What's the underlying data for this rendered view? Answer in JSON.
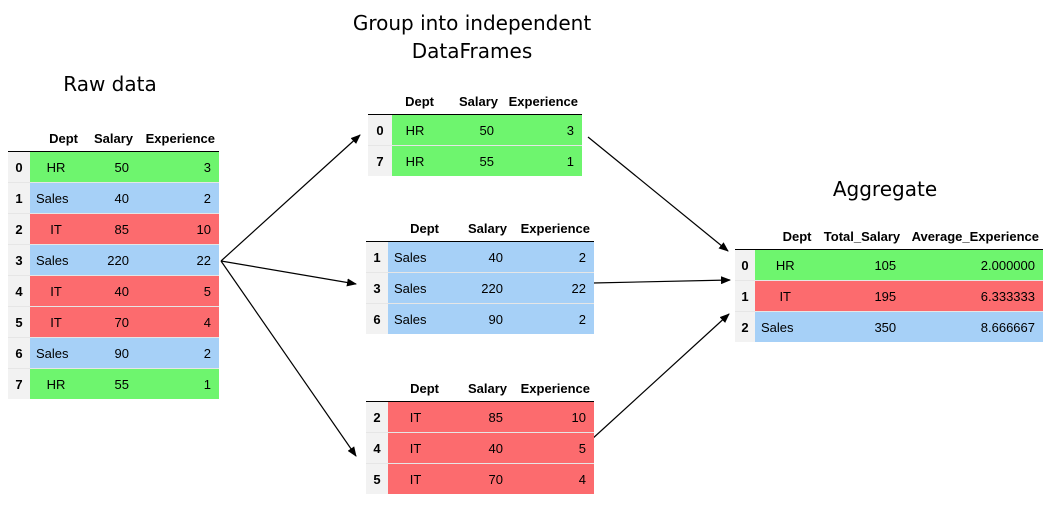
{
  "titles": {
    "raw": "Raw data",
    "group_line1": "Group into independent",
    "group_line2": "DataFrames",
    "aggregate": "Aggregate"
  },
  "colors": {
    "HR": "#6ef56e",
    "Sales": "#a6d0f7",
    "IT": "#fc6b6e"
  },
  "raw": {
    "columns": [
      "Dept",
      "Salary",
      "Experience"
    ],
    "rows": [
      {
        "idx": "0",
        "dept": "HR",
        "salary": "50",
        "exp": "3"
      },
      {
        "idx": "1",
        "dept": "Sales",
        "salary": "40",
        "exp": "2"
      },
      {
        "idx": "2",
        "dept": "IT",
        "salary": "85",
        "exp": "10"
      },
      {
        "idx": "3",
        "dept": "Sales",
        "salary": "220",
        "exp": "22"
      },
      {
        "idx": "4",
        "dept": "IT",
        "salary": "40",
        "exp": "5"
      },
      {
        "idx": "5",
        "dept": "IT",
        "salary": "70",
        "exp": "4"
      },
      {
        "idx": "6",
        "dept": "Sales",
        "salary": "90",
        "exp": "2"
      },
      {
        "idx": "7",
        "dept": "HR",
        "salary": "55",
        "exp": "1"
      }
    ]
  },
  "groups": {
    "hr": {
      "columns": [
        "Dept",
        "Salary",
        "Experience"
      ],
      "rows": [
        {
          "idx": "0",
          "dept": "HR",
          "salary": "50",
          "exp": "3"
        },
        {
          "idx": "7",
          "dept": "HR",
          "salary": "55",
          "exp": "1"
        }
      ]
    },
    "sales": {
      "columns": [
        "Dept",
        "Salary",
        "Experience"
      ],
      "rows": [
        {
          "idx": "1",
          "dept": "Sales",
          "salary": "40",
          "exp": "2"
        },
        {
          "idx": "3",
          "dept": "Sales",
          "salary": "220",
          "exp": "22"
        },
        {
          "idx": "6",
          "dept": "Sales",
          "salary": "90",
          "exp": "2"
        }
      ]
    },
    "it": {
      "columns": [
        "Dept",
        "Salary",
        "Experience"
      ],
      "rows": [
        {
          "idx": "2",
          "dept": "IT",
          "salary": "85",
          "exp": "10"
        },
        {
          "idx": "4",
          "dept": "IT",
          "salary": "40",
          "exp": "5"
        },
        {
          "idx": "5",
          "dept": "IT",
          "salary": "70",
          "exp": "4"
        }
      ]
    }
  },
  "aggregate": {
    "columns": [
      "Dept",
      "Total_Salary",
      "Average_Experience"
    ],
    "rows": [
      {
        "idx": "0",
        "dept": "HR",
        "total": "105",
        "avg": "2.000000"
      },
      {
        "idx": "1",
        "dept": "IT",
        "total": "195",
        "avg": "6.333333"
      },
      {
        "idx": "2",
        "dept": "Sales",
        "total": "350",
        "avg": "8.666667"
      }
    ]
  }
}
